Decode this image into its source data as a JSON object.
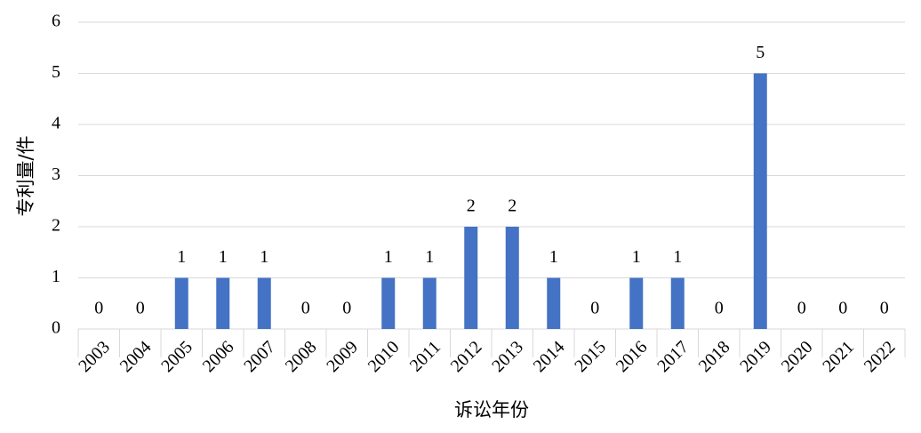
{
  "chart_data": {
    "type": "bar",
    "y_label": "专利量/件",
    "x_label": "诉讼年份",
    "categories": [
      "2003",
      "2004",
      "2005",
      "2006",
      "2007",
      "2008",
      "2009",
      "2010",
      "2011",
      "2012",
      "2013",
      "2014",
      "2015",
      "2016",
      "2017",
      "2018",
      "2019",
      "2020",
      "2021",
      "2022"
    ],
    "values": [
      0,
      0,
      1,
      1,
      1,
      0,
      0,
      1,
      1,
      2,
      2,
      1,
      0,
      1,
      1,
      0,
      5,
      0,
      0,
      0
    ],
    "color": "#4472c4",
    "ylim": [
      0,
      6
    ],
    "yticks": [
      0,
      1,
      2,
      3,
      4,
      5,
      6
    ],
    "grid": true
  }
}
